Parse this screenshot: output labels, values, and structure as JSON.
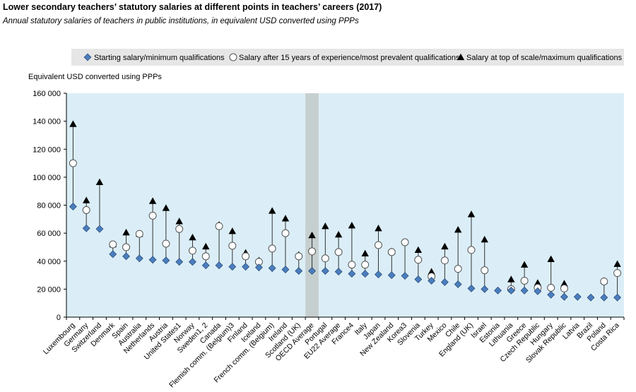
{
  "title": "Lower secondary teachers’ statutory salaries at different points in teachers’ careers (2017)",
  "subtitle": "Annual statutory salaries of teachers in public institutions, in equivalent USD converted using PPPs",
  "colors": {
    "plot_bg": "#dbeef7",
    "highlight_band": "#c6cfcf",
    "legend_bg": "#e6e6e6",
    "start_marker": "#4a7dbd",
    "start_marker_stroke": "#1f3d66",
    "mid_marker_fill": "#ffffff",
    "mid_marker_stroke": "#555555",
    "top_marker": "#000000",
    "range_line": "#333333"
  },
  "chart_data": {
    "type": "scatter",
    "title": "Lower secondary teachers’ statutory salaries at different points in teachers’ careers (2017)",
    "subtitle": "Annual statutory salaries of teachers in public institutions, in equivalent USD converted using PPPs",
    "ylabel": "Equivalent USD converted using PPPs",
    "ylim": [
      0,
      160000
    ],
    "yticks": [
      0,
      20000,
      40000,
      60000,
      80000,
      100000,
      120000,
      140000,
      160000
    ],
    "ytick_labels": [
      "0",
      "20 000",
      "40 000",
      "60 000",
      "80 000",
      "100 000",
      "120 000",
      "140 000",
      "160 000"
    ],
    "grid": false,
    "legend_position": "top",
    "highlight_category": "OECD Average",
    "categories": [
      "Luxembourg",
      "Germany",
      "Switzerland",
      "Denmark",
      "Spain",
      "Australia",
      "Netherlands",
      "Austria",
      "United States1",
      "Norway",
      "Sweden1, 2",
      "Canada",
      "Flemish comm. (Belgium)3",
      "Finland",
      "Iceland",
      "French comm. (Belgium)",
      "Ireland",
      "Scotland (UK)",
      "OECD Average",
      "Portugal",
      "EU22 Average",
      "France4",
      "Italy",
      "Japan",
      "New Zealand",
      "Korea3",
      "Slovenia",
      "Turkey",
      "Mexico",
      "Chile",
      "England (UK)",
      "Israel",
      "Estonia",
      "Lithuania",
      "Greece",
      "Czech Republic",
      "Hungary",
      "Slovak Republic",
      "Latvia",
      "Brazil",
      "Poland",
      "Costa Rica"
    ],
    "series": [
      {
        "name": "Starting salary/minimum qualifications",
        "marker": "diamond",
        "values": [
          79000,
          63500,
          63000,
          45000,
          43500,
          42000,
          41000,
          40500,
          39500,
          39500,
          37000,
          37000,
          36000,
          36000,
          35500,
          35000,
          34000,
          33000,
          33000,
          33000,
          32500,
          31000,
          31000,
          30500,
          30000,
          29500,
          27000,
          26000,
          25000,
          23500,
          20500,
          20000,
          19000,
          19000,
          19000,
          18500,
          16000,
          14500,
          14500,
          14000,
          14000,
          14000
        ]
      },
      {
        "name": "Salary after 15 years of experience/most prevalent qualifications",
        "marker": "circle",
        "values": [
          110000,
          76500,
          null,
          52000,
          50000,
          59500,
          72500,
          52500,
          63000,
          47500,
          43500,
          65000,
          51000,
          43500,
          39500,
          49000,
          60000,
          43500,
          47000,
          42000,
          46500,
          37500,
          37500,
          51500,
          46500,
          53500,
          41000,
          29000,
          40500,
          34500,
          48000,
          33500,
          null,
          20000,
          26000,
          21000,
          21000,
          20500,
          null,
          null,
          25500,
          31500
        ]
      },
      {
        "name": "Salary at top of scale/maximum qualifications",
        "marker": "triangle",
        "values": [
          138000,
          83500,
          96500,
          52000,
          60500,
          59500,
          83000,
          78000,
          68500,
          57000,
          50500,
          66000,
          61500,
          46000,
          40500,
          76000,
          70500,
          44500,
          58500,
          65000,
          59000,
          65500,
          45500,
          63500,
          47000,
          null,
          48000,
          32500,
          50500,
          62500,
          73500,
          55500,
          null,
          27000,
          37500,
          24500,
          41500,
          24000,
          null,
          null,
          26000,
          38000
        ]
      }
    ]
  }
}
